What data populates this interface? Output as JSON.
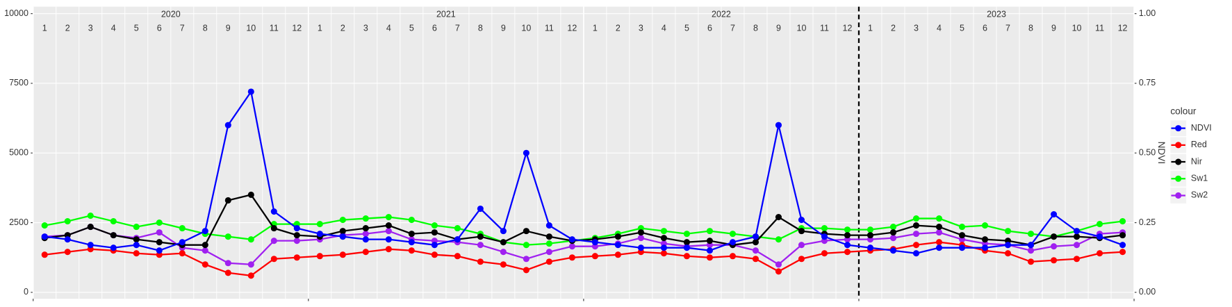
{
  "chart_data": {
    "type": "line",
    "x": [
      "2020-01",
      "2020-02",
      "2020-03",
      "2020-04",
      "2020-05",
      "2020-06",
      "2020-07",
      "2020-08",
      "2020-09",
      "2020-10",
      "2020-11",
      "2020-12",
      "2021-01",
      "2021-02",
      "2021-03",
      "2021-04",
      "2021-05",
      "2021-06",
      "2021-07",
      "2021-08",
      "2021-09",
      "2021-10",
      "2021-11",
      "2021-12",
      "2022-01",
      "2022-02",
      "2022-03",
      "2022-04",
      "2022-05",
      "2022-06",
      "2022-07",
      "2022-08",
      "2022-09",
      "2022-10",
      "2022-11",
      "2022-12",
      "2023-01",
      "2023-02",
      "2023-03",
      "2023-04",
      "2023-05",
      "2023-06",
      "2023-07",
      "2023-08",
      "2023-09",
      "2023-10",
      "2023-11",
      "2023-12"
    ],
    "years": [
      "2020",
      "2021",
      "2022",
      "2023"
    ],
    "months": [
      "1",
      "2",
      "3",
      "4",
      "5",
      "6",
      "7",
      "8",
      "9",
      "10",
      "11",
      "12"
    ],
    "series": [
      {
        "name": "NDVI",
        "color": "#0000ff",
        "axis": "y2",
        "values": [
          0.2,
          0.19,
          0.17,
          0.16,
          0.17,
          0.15,
          0.18,
          0.22,
          0.6,
          0.72,
          0.29,
          0.23,
          0.21,
          0.2,
          0.19,
          0.19,
          0.18,
          0.17,
          0.19,
          0.3,
          0.22,
          0.5,
          0.24,
          0.19,
          0.18,
          0.17,
          0.16,
          0.16,
          0.16,
          0.15,
          0.18,
          0.2,
          0.6,
          0.26,
          0.2,
          0.17,
          0.16,
          0.15,
          0.14,
          0.16,
          0.16,
          0.16,
          0.17,
          0.17,
          0.28,
          0.22,
          0.2,
          0.17
        ]
      },
      {
        "name": "Red",
        "color": "#ff0000",
        "values": [
          1350,
          1450,
          1550,
          1500,
          1400,
          1350,
          1400,
          1000,
          700,
          600,
          1200,
          1250,
          1300,
          1350,
          1450,
          1550,
          1500,
          1350,
          1300,
          1100,
          1000,
          800,
          1100,
          1250,
          1300,
          1350,
          1450,
          1400,
          1300,
          1250,
          1300,
          1200,
          750,
          1200,
          1400,
          1450,
          1500,
          1550,
          1700,
          1800,
          1700,
          1500,
          1400,
          1100,
          1150,
          1200,
          1400,
          1450
        ]
      },
      {
        "name": "Nir",
        "color": "#000000",
        "values": [
          1950,
          2050,
          2350,
          2050,
          1900,
          1800,
          1700,
          1700,
          3300,
          3500,
          2300,
          2050,
          2000,
          2200,
          2300,
          2400,
          2100,
          2150,
          1900,
          2000,
          1800,
          2200,
          2000,
          1850,
          1900,
          2000,
          2150,
          1950,
          1800,
          1850,
          1700,
          1800,
          2700,
          2200,
          2100,
          2050,
          2050,
          2150,
          2400,
          2350,
          2050,
          1900,
          1850,
          1700,
          2000,
          2000,
          1950,
          2050
        ]
      },
      {
        "name": "Sw1",
        "color": "#00ff00",
        "values": [
          2400,
          2550,
          2750,
          2550,
          2350,
          2500,
          2300,
          2100,
          2000,
          1900,
          2450,
          2450,
          2450,
          2600,
          2650,
          2700,
          2600,
          2400,
          2300,
          2100,
          1800,
          1700,
          1750,
          1850,
          1950,
          2100,
          2300,
          2200,
          2100,
          2200,
          2100,
          2000,
          1900,
          2300,
          2300,
          2250,
          2250,
          2350,
          2650,
          2650,
          2350,
          2400,
          2200,
          2100,
          2000,
          2200,
          2450,
          2550
        ]
      },
      {
        "name": "Sw2",
        "color": "#a020f0",
        "values": [
          2000,
          2050,
          2350,
          2050,
          1950,
          2150,
          1600,
          1500,
          1050,
          1000,
          1850,
          1850,
          1900,
          2050,
          2100,
          2200,
          1900,
          1850,
          1800,
          1700,
          1450,
          1200,
          1450,
          1650,
          1650,
          1750,
          1950,
          1750,
          1650,
          1700,
          1700,
          1500,
          1000,
          1700,
          1850,
          1900,
          1900,
          1950,
          2100,
          2150,
          1900,
          1750,
          1700,
          1500,
          1650,
          1700,
          2100,
          2150
        ]
      }
    ],
    "ylim": [
      -230,
      10250
    ],
    "yticks": [
      0,
      2500,
      5000,
      7500,
      10000
    ],
    "y2lim": [
      -0.023,
      1.025
    ],
    "y2ticks": [
      {
        "value": 0,
        "label": "0.00"
      },
      {
        "value": 0.25,
        "label": "0.25"
      },
      {
        "value": 0.5,
        "label": "0.50"
      },
      {
        "value": 0.75,
        "label": "0.75"
      },
      {
        "value": 1,
        "label": "1.00"
      }
    ],
    "y2label": "NDVI",
    "legend_title": "colour",
    "legend_position": "right",
    "vline_x": "2023-01",
    "grid": true
  }
}
